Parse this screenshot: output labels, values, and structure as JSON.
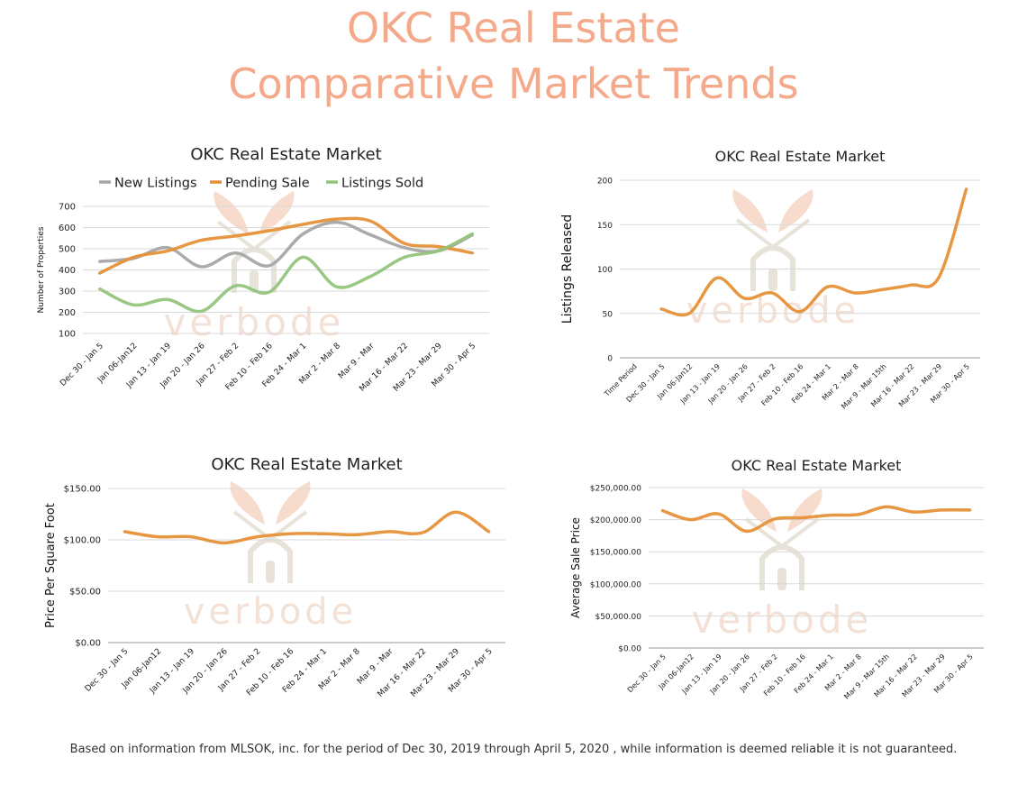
{
  "header": {
    "title_line1": "OKC Real Estate",
    "title_line2": "Comparative Market Trends"
  },
  "footnote": "Based on information from MLSOK, inc. for the period of Dec 30, 2019 through April 5, 2020 , while information is deemed reliable it is not guaranteed.",
  "watermark": {
    "text": "verbode",
    "color": "#f3dcd0"
  },
  "colors": {
    "title": "#f4a98a",
    "new_listings": "#a6a6a6",
    "pending": "#e69138",
    "sold": "#93c47d",
    "grid": "#d9d9d9"
  },
  "chart_data": [
    {
      "type": "line",
      "title": "OKC Real Estate Market",
      "ylabel": "Number of Properties",
      "xlabel": "",
      "ylim": [
        100,
        700
      ],
      "yticks": [
        "700",
        "600",
        "500",
        "400",
        "300",
        "200",
        "100"
      ],
      "grid": true,
      "legend": "top",
      "categories": [
        "Dec 30 - Jan 5",
        "Jan 06-Jan12",
        "Jan 13 - Jan 19",
        "Jan 20 - Jan 26",
        "Jan 27 - Feb 2",
        "Feb 10 - Feb 16",
        "Feb 24 - Mar 1",
        "Mar 2 - Mar 8",
        "Mar 9 - Mar",
        "Mar 16 - Mar 22",
        "Mar 23 - Mar 29",
        "Mar 30 - Apr 5"
      ],
      "series": [
        {
          "name": "New Listings",
          "color": "#a6a6a6",
          "values": [
            440,
            455,
            505,
            415,
            480,
            420,
            570,
            625,
            565,
            505,
            490,
            565
          ]
        },
        {
          "name": "Pending Sale",
          "color": "#e69138",
          "values": [
            385,
            460,
            490,
            540,
            560,
            585,
            615,
            640,
            630,
            525,
            510,
            480
          ]
        },
        {
          "name": "Listings Sold",
          "color": "#93c47d",
          "values": [
            310,
            235,
            260,
            205,
            325,
            295,
            460,
            320,
            370,
            460,
            490,
            570
          ]
        }
      ]
    },
    {
      "type": "line",
      "title": "OKC Real Estate Market",
      "ylabel": "Listings Released",
      "xlabel": "",
      "ylim": [
        0,
        200
      ],
      "yticks": [
        "200",
        "150",
        "100",
        "50",
        "0"
      ],
      "grid": true,
      "categories": [
        "Time Period",
        "Dec 30 - Jan 5",
        "Jan 06-Jan12",
        "Jan 13 - Jan 19",
        "Jan 20 - Jan 26",
        "Jan 27 - Feb 2",
        "Feb 10 - Feb 16",
        "Feb 24 - Mar 1",
        "Mar 2 - Mar 8",
        "Mar 9 - Mar 15th",
        "Mar 16 - Mar 22",
        "Mar 23 - Mar 29",
        "Mar 30 - Apr 5"
      ],
      "series": [
        {
          "color": "#e69138",
          "values": [
            null,
            55,
            50,
            90,
            67,
            73,
            52,
            80,
            73,
            77,
            82,
            90,
            190
          ]
        }
      ]
    },
    {
      "type": "line",
      "title": "OKC Real Estate Market",
      "ylabel": "Price Per Square Foot",
      "xlabel": "",
      "ylim": [
        0,
        150
      ],
      "yticks": [
        "$150.00",
        "$100.00",
        "$50.00",
        "$0.00"
      ],
      "grid": true,
      "categories": [
        "Dec 30 - Jan 5",
        "Jan 06-Jan12",
        "Jan 13 - Jan 19",
        "Jan 20 - Jan 26",
        "Jan 27 - Feb 2",
        "Feb 10 - Feb 16",
        "Feb 24 - Mar 1",
        "Mar 2 - Mar 8",
        "Mar 9 - Mar",
        "Mar 16 - Mar 22",
        "Mar 23 - Mar 29",
        "Mar 30 - Apr 5"
      ],
      "series": [
        {
          "color": "#e69138",
          "values": [
            108,
            103,
            103,
            97,
            103,
            106,
            106,
            105,
            108,
            107,
            127,
            108
          ]
        }
      ]
    },
    {
      "type": "line",
      "title": "OKC Real Estate Market",
      "ylabel": "Average Sale Price",
      "xlabel": "",
      "ylim": [
        0,
        250000
      ],
      "yticks": [
        "$250,000.00",
        "$200,000.00",
        "$150,000.00",
        "$100,000.00",
        "$50,000.00",
        "$0.00"
      ],
      "grid": true,
      "categories": [
        "Dec 30 - Jan 5",
        "Jan 06-Jan12",
        "Jan 13 - Jan 19",
        "Jan 20 - Jan 26",
        "Jan 27 - Feb 2",
        "Feb 10 - Feb 16",
        "Feb 24 - Mar 1",
        "Mar 2 - Mar 8",
        "Mar 9 - Mar 15th",
        "Mar 16 - Mar 22",
        "Mar 23 - Mar 29",
        "Mar 30 - Apr 5"
      ],
      "series": [
        {
          "color": "#e69138",
          "values": [
            214000,
            200000,
            209000,
            182000,
            201000,
            203000,
            207000,
            208000,
            220000,
            212000,
            215000,
            215000
          ]
        }
      ]
    }
  ]
}
